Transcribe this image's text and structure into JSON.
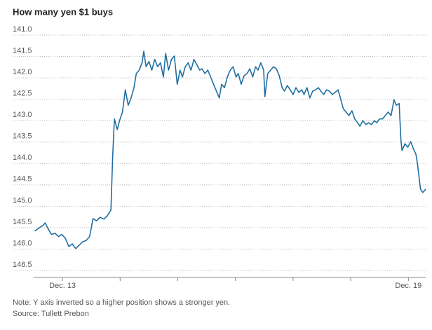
{
  "chart_data": {
    "type": "line",
    "title": "How many yen $1 buys",
    "note": "Note: Y axis inverted so a higher position shows a stronger yen.",
    "source": "Source: Tullett Prebon",
    "color": "#1f6fa3",
    "y_inverted": true,
    "grid": true,
    "ylim": [
      141,
      146.5
    ],
    "yticks": [
      {
        "value": 141,
        "label": "141.0"
      },
      141.5,
      {
        "value": 142,
        "label": "142.0"
      },
      142.5,
      {
        "value": 143,
        "label": "143.0"
      },
      143.5,
      {
        "value": 144,
        "label": "144.0"
      },
      144.5,
      {
        "value": 145,
        "label": "145.0"
      },
      145.5,
      {
        "value": 146,
        "label": "146.0"
      },
      146.5
    ],
    "xlim": [
      12.5,
      19.3
    ],
    "xticks": [
      {
        "value": 13,
        "label": "Dec. 13"
      },
      {
        "value": 19,
        "label": "Dec. 19"
      }
    ],
    "xminor_ticks": [
      14,
      15,
      16,
      17,
      18
    ],
    "x": [
      12.52,
      12.6,
      12.66,
      12.7,
      12.76,
      12.81,
      12.87,
      12.93,
      12.99,
      13.05,
      13.11,
      13.17,
      13.23,
      13.29,
      13.35,
      13.41,
      13.47,
      13.53,
      13.59,
      13.65,
      13.72,
      13.78,
      13.84,
      13.87,
      13.9,
      13.95,
      13.99,
      14.04,
      14.09,
      14.14,
      14.19,
      14.24,
      14.28,
      14.33,
      14.38,
      14.41,
      14.45,
      14.5,
      14.55,
      14.6,
      14.65,
      14.7,
      14.75,
      14.79,
      14.84,
      14.89,
      14.94,
      14.99,
      15.04,
      15.08,
      15.13,
      15.18,
      15.23,
      15.28,
      15.33,
      15.38,
      15.42,
      15.47,
      15.52,
      15.57,
      15.62,
      15.67,
      15.72,
      15.76,
      15.81,
      15.86,
      15.91,
      15.96,
      16.01,
      16.05,
      16.1,
      16.15,
      16.2,
      16.25,
      16.3,
      16.35,
      16.39,
      16.44,
      16.49,
      16.51,
      16.56,
      16.61,
      16.66,
      16.71,
      16.76,
      16.81,
      16.85,
      16.9,
      16.95,
      17.0,
      17.05,
      17.1,
      17.15,
      17.19,
      17.24,
      17.29,
      17.34,
      17.39,
      17.44,
      17.48,
      17.53,
      17.58,
      17.63,
      17.68,
      17.73,
      17.78,
      17.82,
      17.87,
      17.92,
      17.97,
      18.02,
      18.07,
      18.12,
      18.16,
      18.21,
      18.26,
      18.31,
      18.36,
      18.41,
      18.45,
      18.5,
      18.55,
      18.6,
      18.65,
      18.7,
      18.75,
      18.79,
      18.84,
      18.87,
      18.89,
      18.94,
      18.99,
      19.04,
      19.09,
      19.13,
      19.16,
      19.18,
      19.21,
      19.25,
      19.3
    ],
    "values": [
      145.58,
      145.5,
      145.45,
      145.39,
      145.55,
      145.66,
      145.63,
      145.71,
      145.66,
      145.75,
      145.94,
      145.88,
      145.99,
      145.91,
      145.83,
      145.8,
      145.71,
      145.29,
      145.34,
      145.26,
      145.3,
      145.22,
      145.09,
      143.86,
      142.96,
      143.21,
      143.0,
      142.8,
      142.28,
      142.64,
      142.47,
      142.23,
      141.9,
      141.82,
      141.65,
      141.38,
      141.74,
      141.62,
      141.82,
      141.57,
      141.74,
      141.65,
      141.98,
      141.43,
      141.82,
      141.57,
      141.49,
      142.15,
      141.82,
      141.98,
      141.74,
      141.65,
      141.82,
      141.57,
      141.69,
      141.82,
      141.79,
      141.9,
      141.82,
      141.98,
      142.15,
      142.31,
      142.47,
      142.15,
      142.23,
      141.98,
      141.82,
      141.74,
      141.98,
      141.9,
      142.15,
      141.95,
      141.9,
      141.79,
      141.98,
      141.74,
      141.82,
      141.65,
      141.82,
      142.44,
      141.9,
      141.82,
      141.74,
      141.79,
      141.95,
      142.23,
      142.31,
      142.18,
      142.28,
      142.39,
      142.23,
      142.34,
      142.28,
      142.39,
      142.23,
      142.47,
      142.31,
      142.28,
      142.23,
      142.31,
      142.39,
      142.28,
      142.31,
      142.39,
      142.34,
      142.28,
      142.47,
      142.72,
      142.8,
      142.88,
      142.77,
      142.96,
      143.05,
      143.13,
      143.0,
      143.09,
      143.05,
      143.09,
      143.0,
      143.05,
      142.96,
      142.96,
      142.88,
      142.8,
      142.88,
      142.51,
      142.64,
      142.6,
      143.45,
      143.7,
      143.54,
      143.62,
      143.49,
      143.67,
      143.78,
      144.03,
      144.27,
      144.6,
      144.68,
      144.6
    ]
  }
}
